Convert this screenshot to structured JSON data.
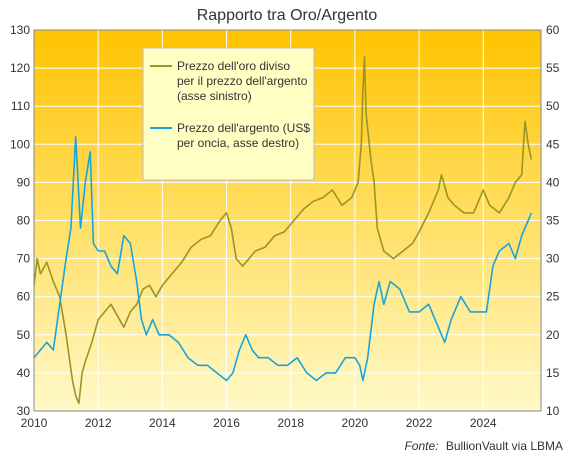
{
  "chart_data": {
    "type": "line",
    "title": "Rapporto tra Oro/Argento",
    "source_label": "Fonte:",
    "source_text": "BullionVault via LBMA",
    "x_ticks": [
      "2010",
      "2012",
      "2014",
      "2016",
      "2018",
      "2020",
      "2022",
      "2024"
    ],
    "xlim": [
      2010,
      2025.8
    ],
    "y_left": {
      "ylim": [
        30,
        130
      ],
      "ticks": [
        "30",
        "40",
        "50",
        "60",
        "70",
        "80",
        "90",
        "100",
        "110",
        "120",
        "130"
      ]
    },
    "y_right": {
      "ylim": [
        10,
        60
      ],
      "ticks": [
        "10",
        "15",
        "20",
        "25",
        "30",
        "35",
        "40",
        "45",
        "50",
        "55",
        "60"
      ]
    },
    "legend_placement": "top-center",
    "background_gradient": [
      "#ffc400",
      "#fff9c8"
    ],
    "series": [
      {
        "name": "Prezzo dell'oro diviso per il prezzo dell'argento (asse sinistro)",
        "legend_lines": [
          "Prezzo dell'oro diviso",
          "per il prezzo dell'argento",
          "(asse sinistro)"
        ],
        "axis": "left",
        "color": "#9a9524",
        "x": [
          2010.0,
          2010.1,
          2010.2,
          2010.4,
          2010.6,
          2010.8,
          2011.0,
          2011.1,
          2011.2,
          2011.3,
          2011.4,
          2011.5,
          2011.6,
          2011.8,
          2012.0,
          2012.2,
          2012.4,
          2012.6,
          2012.8,
          2013.0,
          2013.2,
          2013.4,
          2013.6,
          2013.8,
          2014.0,
          2014.3,
          2014.6,
          2014.9,
          2015.2,
          2015.5,
          2015.8,
          2016.0,
          2016.15,
          2016.3,
          2016.5,
          2016.7,
          2016.9,
          2017.2,
          2017.5,
          2017.8,
          2018.1,
          2018.4,
          2018.7,
          2019.0,
          2019.3,
          2019.6,
          2019.9,
          2020.1,
          2020.2,
          2020.25,
          2020.3,
          2020.35,
          2020.5,
          2020.6,
          2020.7,
          2020.9,
          2021.2,
          2021.5,
          2021.8,
          2022.0,
          2022.3,
          2022.6,
          2022.7,
          2022.9,
          2023.1,
          2023.4,
          2023.7,
          2024.0,
          2024.2,
          2024.5,
          2024.8,
          2025.0,
          2025.2,
          2025.3,
          2025.4,
          2025.5
        ],
        "values": [
          63,
          70,
          66,
          69,
          64,
          60,
          50,
          44,
          38,
          34,
          32,
          40,
          43,
          48,
          54,
          56,
          58,
          55,
          52,
          56,
          58,
          62,
          63,
          60,
          63,
          66,
          69,
          73,
          75,
          76,
          80,
          82,
          78,
          70,
          68,
          70,
          72,
          73,
          76,
          77,
          80,
          83,
          85,
          86,
          88,
          84,
          86,
          90,
          100,
          114,
          123,
          108,
          96,
          90,
          78,
          72,
          70,
          72,
          74,
          77,
          82,
          88,
          92,
          86,
          84,
          82,
          82,
          88,
          84,
          82,
          86,
          90,
          92,
          106,
          100,
          96
        ]
      },
      {
        "name": "Prezzo dell'argento (US$ per oncia, asse destro)",
        "legend_lines": [
          "Prezzo dell'argento (US$",
          "per oncia, asse destro)"
        ],
        "axis": "right",
        "color": "#1aa4dc",
        "x": [
          2010.0,
          2010.2,
          2010.4,
          2010.6,
          2010.8,
          2011.0,
          2011.15,
          2011.25,
          2011.3,
          2011.45,
          2011.6,
          2011.75,
          2011.85,
          2012.0,
          2012.2,
          2012.4,
          2012.6,
          2012.8,
          2013.0,
          2013.2,
          2013.35,
          2013.5,
          2013.7,
          2013.9,
          2014.2,
          2014.5,
          2014.8,
          2015.1,
          2015.4,
          2015.7,
          2016.0,
          2016.2,
          2016.4,
          2016.6,
          2016.8,
          2017.0,
          2017.3,
          2017.6,
          2017.9,
          2018.2,
          2018.5,
          2018.8,
          2019.1,
          2019.4,
          2019.7,
          2020.0,
          2020.15,
          2020.25,
          2020.4,
          2020.6,
          2020.75,
          2020.9,
          2021.1,
          2021.4,
          2021.7,
          2022.0,
          2022.3,
          2022.6,
          2022.8,
          2023.0,
          2023.3,
          2023.6,
          2023.9,
          2024.1,
          2024.3,
          2024.5,
          2024.8,
          2025.0,
          2025.2,
          2025.4,
          2025.5
        ],
        "values": [
          17,
          18,
          19,
          18,
          24,
          30,
          34,
          42,
          46,
          34,
          40,
          44,
          32,
          31,
          31,
          29,
          28,
          33,
          32,
          27,
          22,
          20,
          22,
          20,
          20,
          19,
          17,
          16,
          16,
          15,
          14,
          15,
          18,
          20,
          18,
          17,
          17,
          16,
          16,
          17,
          15,
          14,
          15,
          15,
          17,
          17,
          16,
          14,
          17,
          24,
          27,
          24,
          27,
          26,
          23,
          23,
          24,
          21,
          19,
          22,
          25,
          23,
          23,
          23,
          29,
          31,
          32,
          30,
          33,
          35,
          36
        ]
      }
    ]
  }
}
